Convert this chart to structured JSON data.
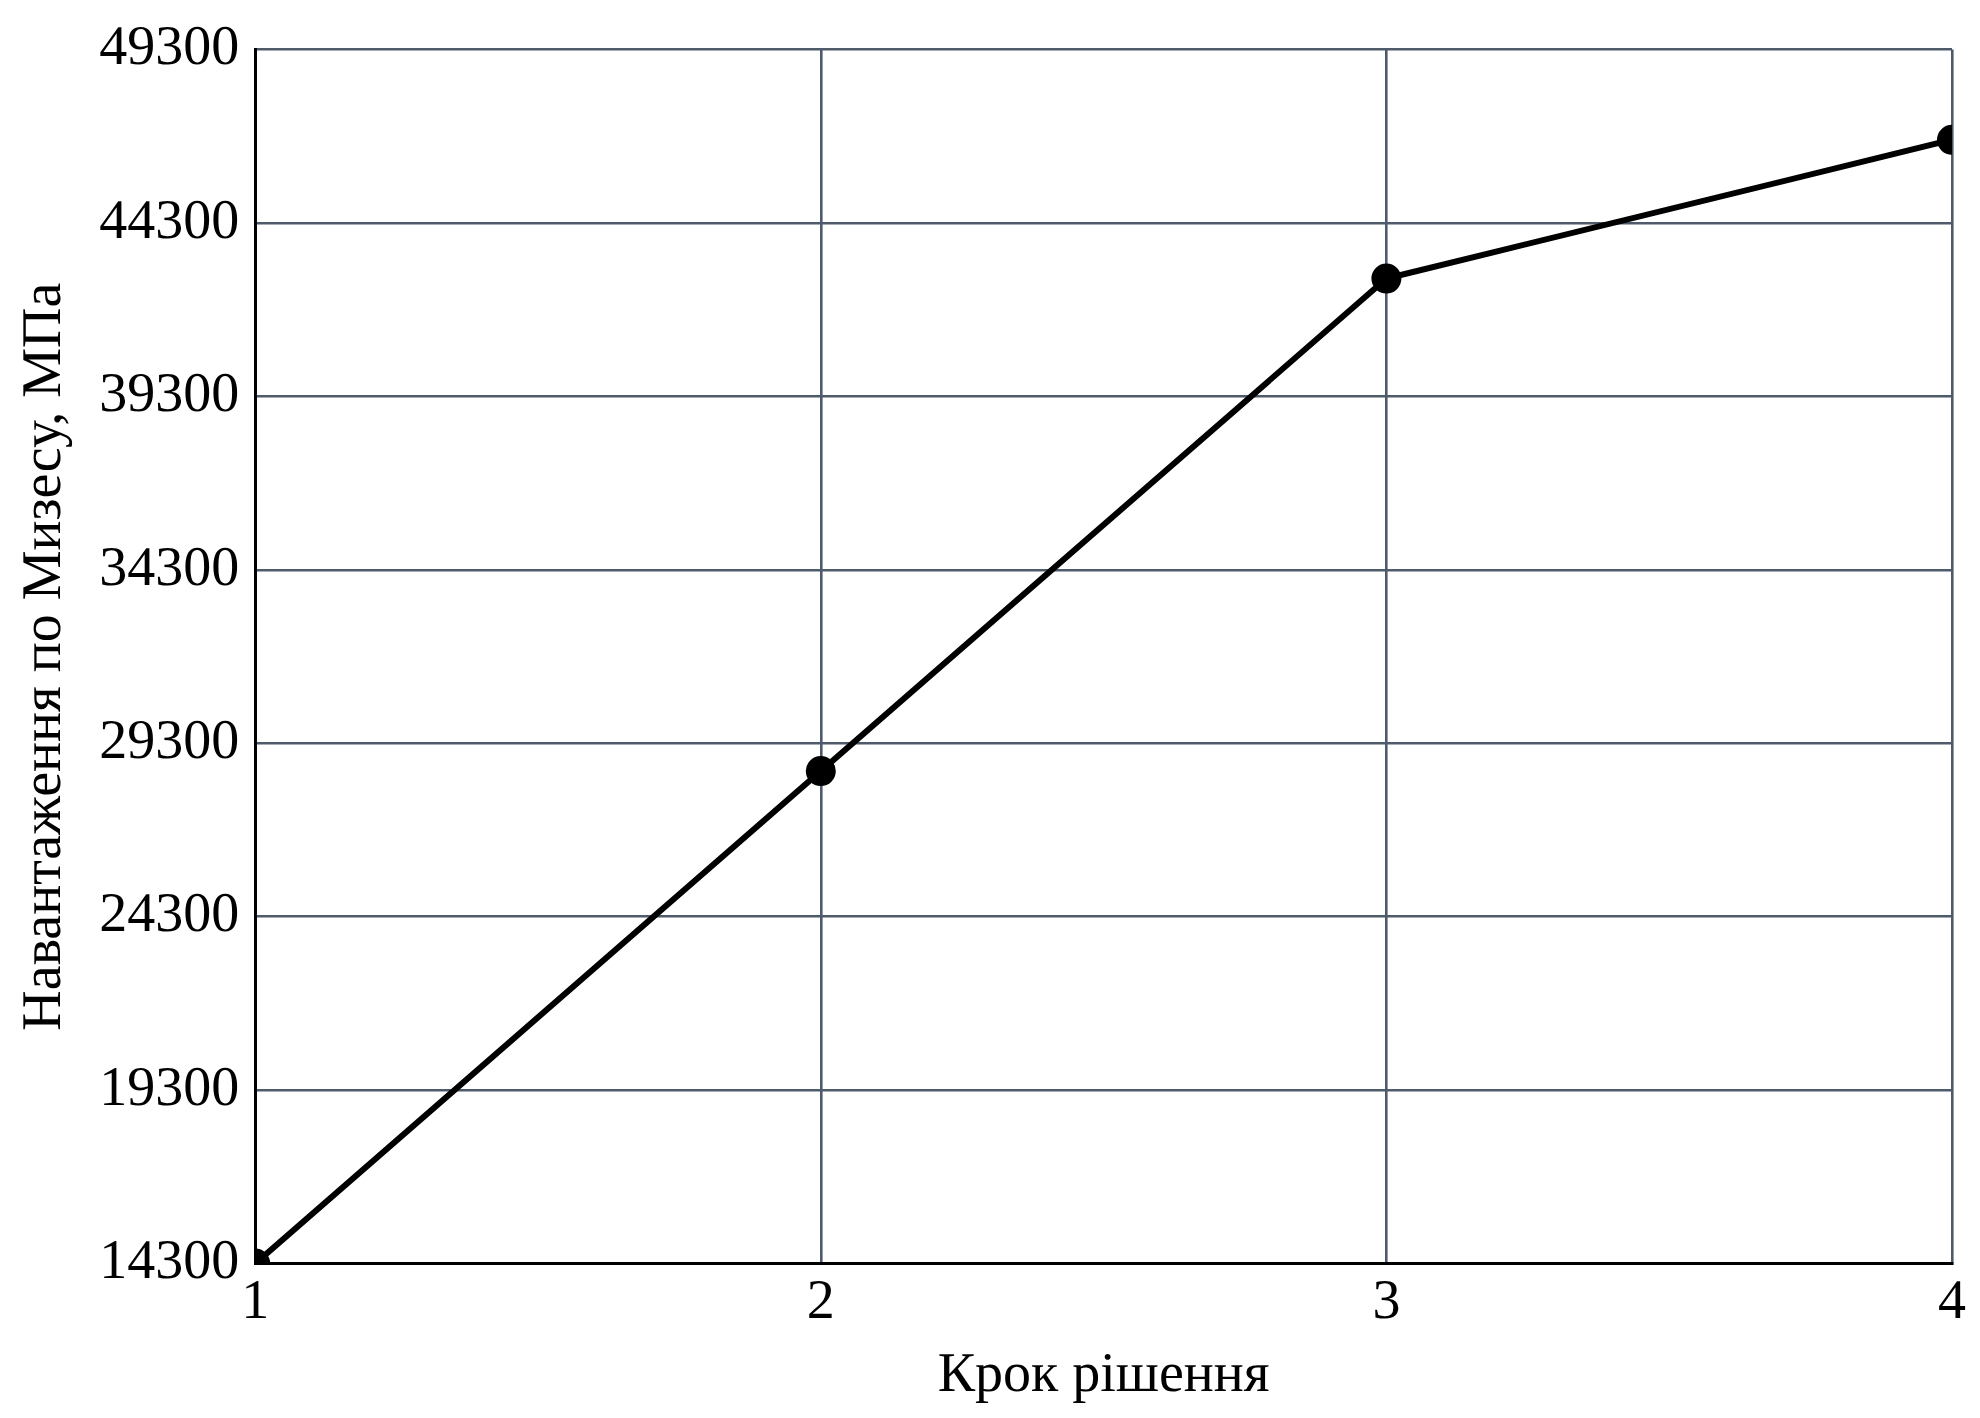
{
  "chart_data": {
    "type": "line",
    "xlabel": "Крок рішення",
    "ylabel": "Навантаження по Мизесу, МПа",
    "x": [
      1,
      2,
      3,
      4
    ],
    "series": [
      {
        "color": "#000000",
        "values": [
          14300,
          28500,
          42700,
          46700
        ]
      }
    ],
    "xlim": [
      1,
      4
    ],
    "xticks": [
      1,
      2,
      3,
      4
    ],
    "ylim": [
      14300,
      49300
    ],
    "yticks": [
      14300,
      19300,
      24300,
      29300,
      34300,
      39300,
      44300,
      49300
    ],
    "grid": true,
    "legend": false,
    "marker": "circle",
    "line_style": "solid"
  }
}
